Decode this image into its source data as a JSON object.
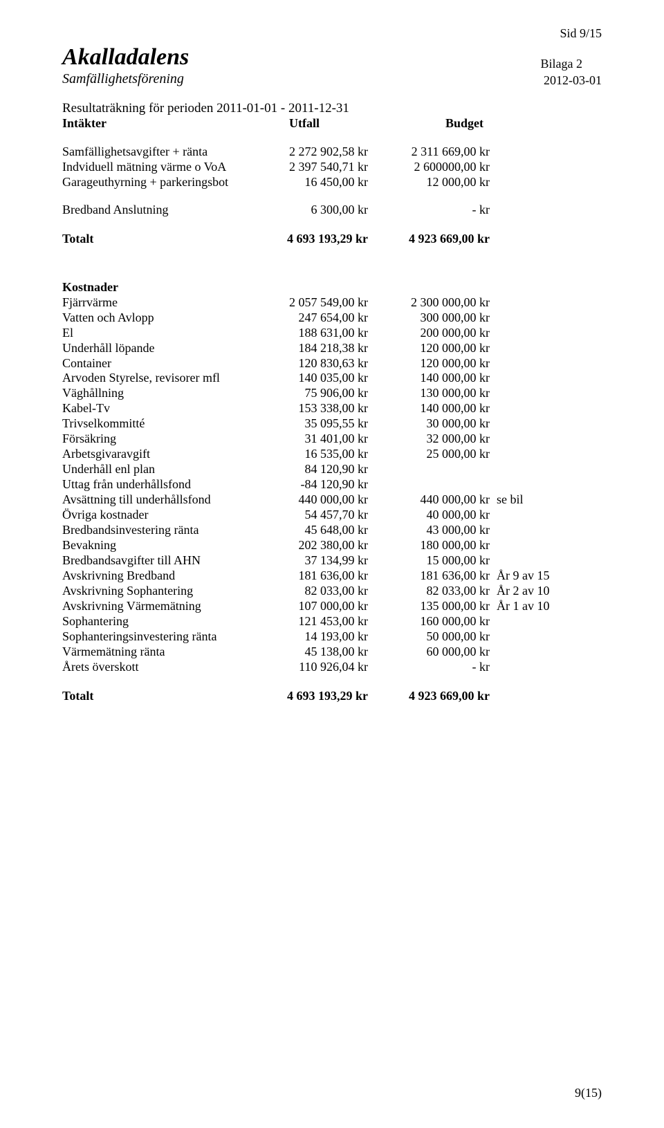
{
  "pageNum": "Sid 9/15",
  "brand": "Akalladalens",
  "subbrand": "Samfällighetsförening",
  "bilaga": "Bilaga 2",
  "date": "2012-03-01",
  "title": "Resultaträkning för perioden 2011-01-01 - 2011-12-31",
  "thead": {
    "c1": "Intäkter",
    "c2": "Utfall",
    "c3": "Budget"
  },
  "intakter": [
    {
      "label": "Samfällighetsavgifter + ränta",
      "v1": "2 272 902,58 kr",
      "v2": "2 311 669,00 kr"
    },
    {
      "label": "Indviduell mätning värme o VoA",
      "v1": "2 397 540,71 kr",
      "v2": "2 600000,00 kr"
    },
    {
      "label": "Garageuthyrning + parkeringsbot",
      "v1": "16 450,00 kr",
      "v2": "12 000,00  kr"
    },
    {
      "label": "Bredband Anslutning",
      "v1": "6 300,00 kr",
      "v2": "-   kr"
    }
  ],
  "total1": {
    "label": "Totalt",
    "v1": "4 693 193,29 kr",
    "v2": "4 923 669,00 kr"
  },
  "kostnaderHead": "Kostnader",
  "kostnader": [
    {
      "label": "Fjärrvärme",
      "v1": "2 057 549,00 kr",
      "v2": "2 300 000,00 kr"
    },
    {
      "label": "Vatten och Avlopp",
      "v1": "247 654,00 kr",
      "v2": "300 000,00 kr"
    },
    {
      "label": "El",
      "v1": "188 631,00 kr",
      "v2": "200 000,00 kr"
    },
    {
      "label": "Underhåll löpande",
      "v1": "184 218,38 kr",
      "v2": "120 000,00 kr"
    },
    {
      "label": "Container",
      "v1": "120 830,63 kr",
      "v2": "120 000,00 kr"
    },
    {
      "label": "Arvoden Styrelse, revisorer mfl",
      "v1": "140 035,00 kr",
      "v2": "140 000,00 kr"
    },
    {
      "label": "Väghållning",
      "v1": "75 906,00 kr",
      "v2": "130 000,00 kr"
    },
    {
      "label": "Kabel-Tv",
      "v1": "153 338,00 kr",
      "v2": "140 000,00 kr"
    },
    {
      "label": "Trivselkommitté",
      "v1": "35 095,55 kr",
      "v2": "30 000,00 kr"
    },
    {
      "label": "Försäkring",
      "v1": "31 401,00 kr",
      "v2": "32 000,00 kr"
    },
    {
      "label": "Arbetsgivaravgift",
      "v1": "16 535,00 kr",
      "v2": "25 000,00 kr"
    },
    {
      "label": "Underhåll enl plan",
      "v1": "84 120,90 kr",
      "v2": ""
    },
    {
      "label": "Uttag från underhållsfond",
      "v1": "-84 120,90 kr",
      "v2": ""
    },
    {
      "label": "Avsättning till underhållsfond",
      "v1": "440 000,00 kr",
      "v2": "440 000,00 kr",
      "note": "se bil"
    },
    {
      "label": "Övriga kostnader",
      "v1": "54 457,70 kr",
      "v2": "40 000,00 kr"
    },
    {
      "label": "Bredbandsinvestering ränta",
      "v1": "45 648,00 kr",
      "v2": "43 000,00 kr"
    },
    {
      "label": "Bevakning",
      "v1": "202 380,00 kr",
      "v2": "180 000,00 kr"
    },
    {
      "label": "Bredbandsavgifter till AHN",
      "v1": "37 134,99 kr",
      "v2": "15 000,00 kr"
    },
    {
      "label": "Avskrivning Bredband",
      "v1": "181 636,00 kr",
      "v2": "181 636,00 kr",
      "note": "År 9 av 15"
    },
    {
      "label": "Avskrivning Sophantering",
      "v1": "82 033,00 kr",
      "v2": "82 033,00 kr",
      "note": "År 2 av 10"
    },
    {
      "label": "Avskrivning Värmemätning",
      "v1": "107 000,00 kr",
      "v2": "135 000,00 kr",
      "note": "År 1 av 10"
    },
    {
      "label": "Sophantering",
      "v1": "121 453,00 kr",
      "v2": "160 000,00 kr"
    },
    {
      "label": "Sophanteringsinvestering ränta",
      "v1": "14 193,00 kr",
      "v2": "50 000,00 kr"
    },
    {
      "label": "Värmemätning ränta",
      "v1": "45 138,00 kr",
      "v2": "60 000,00 kr"
    },
    {
      "label": "Årets överskott",
      "v1": "110 926,04 kr",
      "v2": "-   kr"
    }
  ],
  "total2": {
    "label": "Totalt",
    "v1": "4 693 193,29 kr",
    "v2": "4 923 669,00 kr"
  },
  "footer": "9(15)"
}
